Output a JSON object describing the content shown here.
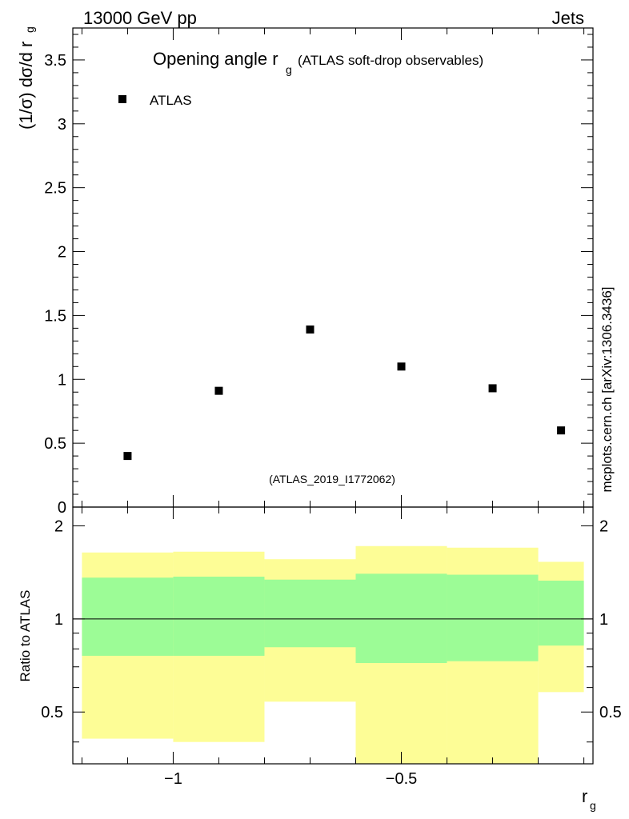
{
  "header": {
    "left": "13000 GeV pp",
    "right": "Jets"
  },
  "side_label": "mcplots.cern.ch [arXiv:1306.3436]",
  "colors": {
    "yellow": "#fdfd96",
    "green": "#9cfc96",
    "marker": "#000000",
    "grey_text": "#999999"
  },
  "chart_data": [
    {
      "type": "scatter",
      "title_main": "Opening angle r",
      "title_sub": "g",
      "title_rest": "(ATLAS soft-drop observables)",
      "ylabel_main": "(1/σ) dσ/d r",
      "ylabel_sub": "g",
      "analysis_tag": "(ATLAS_2019_I1772062)",
      "legend": {
        "label": "ATLAS",
        "position": "top-left"
      },
      "xlim": [
        -1.22,
        -0.08
      ],
      "ylim": [
        0,
        3.75
      ],
      "y_ticks": [
        0,
        0.5,
        1,
        1.5,
        2,
        2.5,
        3,
        3.5
      ],
      "y_tick_labels": [
        "0",
        "0.5",
        "1",
        "1.5",
        "2",
        "2.5",
        "3",
        "3.5"
      ],
      "series": [
        {
          "name": "ATLAS",
          "x": [
            -1.1,
            -0.9,
            -0.7,
            -0.5,
            -0.3,
            -0.15
          ],
          "y": [
            0.4,
            0.91,
            1.39,
            1.1,
            0.93,
            0.6
          ]
        }
      ]
    },
    {
      "type": "area",
      "ylabel": "Ratio to ATLAS",
      "xlabel_main": "r",
      "xlabel_sub": "g",
      "xlim": [
        -1.22,
        -0.08
      ],
      "ylim": [
        0.34,
        2.3
      ],
      "reference_line": 1,
      "x_tick_values": [
        -1,
        -0.5
      ],
      "x_tick_labels": [
        "−1",
        "−0.5"
      ],
      "y_tick_values": [
        0.5,
        1,
        2
      ],
      "y_tick_labels": [
        "0.5",
        "1",
        "2"
      ],
      "bins": [
        {
          "x_low": -1.2,
          "x_high": -1.0,
          "inner_low": 0.76,
          "inner_high": 1.36,
          "outer_low": 0.41,
          "outer_high": 1.64
        },
        {
          "x_low": -1.0,
          "x_high": -0.8,
          "inner_low": 0.76,
          "inner_high": 1.37,
          "outer_low": 0.4,
          "outer_high": 1.65
        },
        {
          "x_low": -0.8,
          "x_high": -0.6,
          "inner_low": 0.81,
          "inner_high": 1.34,
          "outer_low": 0.54,
          "outer_high": 1.56
        },
        {
          "x_low": -0.6,
          "x_high": -0.4,
          "inner_low": 0.72,
          "inner_high": 1.4,
          "outer_low": 0.34,
          "outer_high": 1.72
        },
        {
          "x_low": -0.4,
          "x_high": -0.2,
          "inner_low": 0.73,
          "inner_high": 1.39,
          "outer_low": 0.34,
          "outer_high": 1.7
        },
        {
          "x_low": -0.2,
          "x_high": -0.1,
          "inner_low": 0.82,
          "inner_high": 1.33,
          "outer_low": 0.58,
          "outer_high": 1.53
        }
      ]
    }
  ]
}
